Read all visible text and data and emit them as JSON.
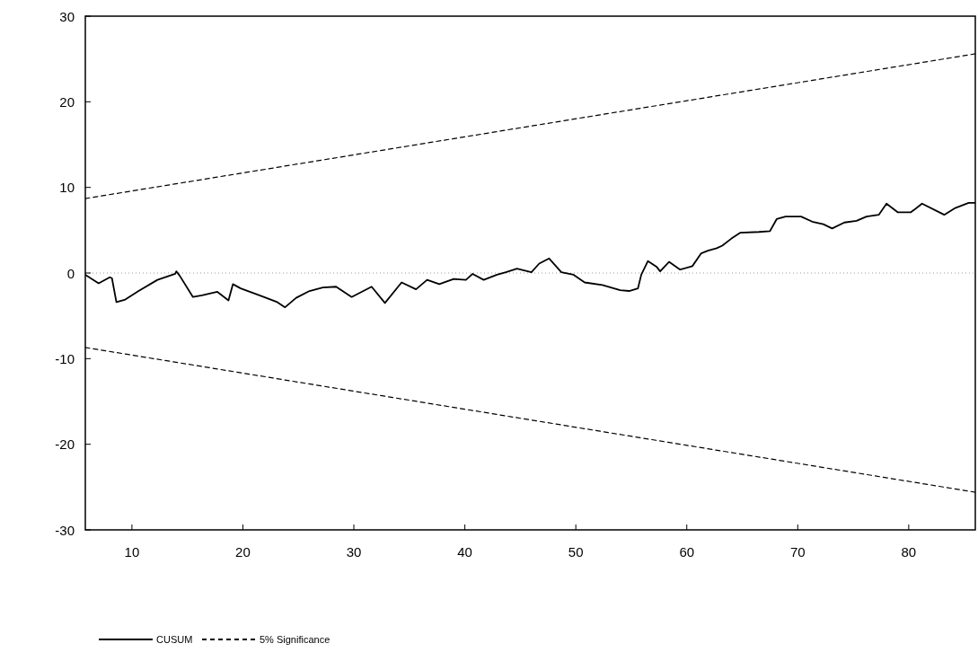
{
  "chart_data": {
    "type": "line",
    "xlim": [
      5.8,
      86
    ],
    "xticks": [
      10,
      20,
      30,
      40,
      50,
      60,
      70,
      80
    ],
    "ylim": [
      -30,
      30
    ],
    "yticks": [
      30,
      20,
      10,
      0,
      -10,
      -20,
      -30
    ],
    "grid": false,
    "legend": "bottom",
    "ref_lines": [
      {
        "axis": "y",
        "value": 0,
        "color": "#9a9a9a",
        "line_style": "dotted"
      }
    ],
    "series": [
      {
        "name": "CUSUM",
        "color": "#000000",
        "line_style": "solid",
        "x": [
          5.8,
          7.0,
          8.0,
          8.2,
          8.6,
          9.4,
          10.6,
          12.3,
          13.9,
          14.0,
          14.3,
          15.5,
          16.3,
          17.7,
          18.7,
          19.1,
          19.8,
          21.5,
          23.1,
          23.8,
          24.8,
          26.0,
          27.2,
          28.4,
          29.8,
          31.6,
          32.8,
          34.3,
          35.6,
          36.6,
          37.7,
          39.0,
          40.1,
          40.7,
          41.7,
          42.9,
          43.7,
          44.7,
          46.0,
          46.7,
          47.6,
          48.7,
          49.8,
          50.8,
          52.4,
          54.0,
          54.8,
          55.6,
          55.9,
          56.5,
          57.3,
          57.6,
          58.4,
          59.4,
          60.5,
          61.3,
          61.9,
          62.7,
          63.2,
          64.0,
          64.8,
          66.5,
          67.5,
          68.1,
          68.9,
          70.3,
          71.3,
          72.3,
          73.1,
          74.2,
          75.3,
          76.2,
          77.3,
          78.0,
          79.0,
          80.2,
          81.2,
          83.2,
          84.2,
          85.4,
          86.0
        ],
        "values": [
          -0.2,
          -1.2,
          -0.5,
          -0.6,
          -3.4,
          -3.1,
          -2.1,
          -0.8,
          -0.1,
          0.2,
          -0.3,
          -2.8,
          -2.6,
          -2.2,
          -3.2,
          -1.3,
          -1.8,
          -2.6,
          -3.4,
          -4.0,
          -2.9,
          -2.1,
          -1.7,
          -1.6,
          -2.8,
          -1.6,
          -3.5,
          -1.1,
          -1.9,
          -0.8,
          -1.3,
          -0.7,
          -0.8,
          -0.1,
          -0.8,
          -0.2,
          0.1,
          0.5,
          0.1,
          1.1,
          1.7,
          0.1,
          -0.2,
          -1.1,
          -1.4,
          -2.0,
          -2.1,
          -1.8,
          -0.2,
          1.4,
          0.7,
          0.2,
          1.3,
          0.4,
          0.8,
          2.3,
          2.6,
          2.9,
          3.2,
          4.0,
          4.7,
          4.8,
          4.9,
          6.3,
          6.6,
          6.6,
          6.0,
          5.7,
          5.2,
          5.9,
          6.1,
          6.6,
          6.8,
          8.1,
          7.1,
          7.1,
          8.1,
          6.8,
          7.6,
          8.2,
          8.2
        ]
      },
      {
        "name": "5% Significance",
        "color": "#000000",
        "line_style": "dashed",
        "x": [
          5.8,
          86
        ],
        "values": [
          8.7,
          25.6
        ]
      },
      {
        "color": "#000000",
        "line_style": "dashed",
        "x": [
          5.8,
          86
        ],
        "values": [
          -8.7,
          -25.6
        ]
      }
    ]
  }
}
